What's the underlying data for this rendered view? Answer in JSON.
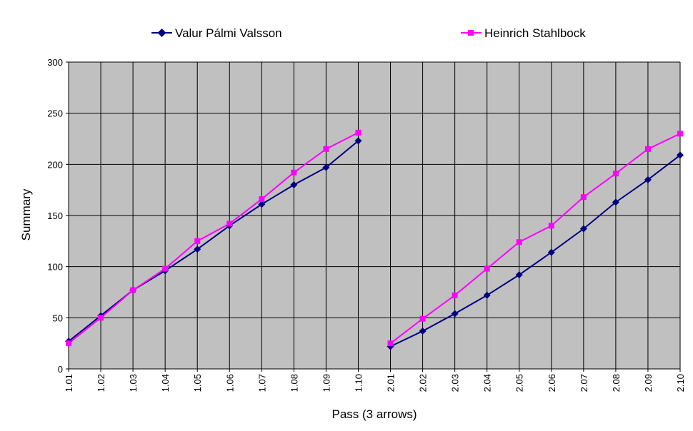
{
  "chart_data": {
    "type": "line",
    "xlabel": "Pass (3 arrows)",
    "ylabel": "Summary",
    "ylim": [
      0,
      300
    ],
    "yticks": [
      0,
      50,
      100,
      150,
      200,
      250,
      300
    ],
    "grid": true,
    "legend_position": "top",
    "plot_background": "#c0c0c0",
    "categories": [
      "1.01",
      "1.02",
      "1.03",
      "1.04",
      "1.05",
      "1.06",
      "1.07",
      "1.08",
      "1.09",
      "1.10",
      "2.01",
      "2.02",
      "2.03",
      "2.04",
      "2.05",
      "2.06",
      "2.07",
      "2.08",
      "2.09",
      "2.10"
    ],
    "series": [
      {
        "name": "Valur Pálmi Valsson",
        "color": "#000080",
        "marker": "diamond",
        "values": [
          27,
          52,
          77,
          96,
          117,
          140,
          161,
          180,
          197,
          223,
          22,
          37,
          54,
          72,
          92,
          114,
          137,
          163,
          185,
          209
        ]
      },
      {
        "name": "Heinrich Stahlbock",
        "color": "#ff00ff",
        "marker": "square",
        "values": [
          25,
          50,
          77,
          98,
          125,
          142,
          166,
          192,
          215,
          231,
          25,
          49,
          72,
          98,
          124,
          140,
          168,
          191,
          215,
          230
        ]
      }
    ]
  }
}
